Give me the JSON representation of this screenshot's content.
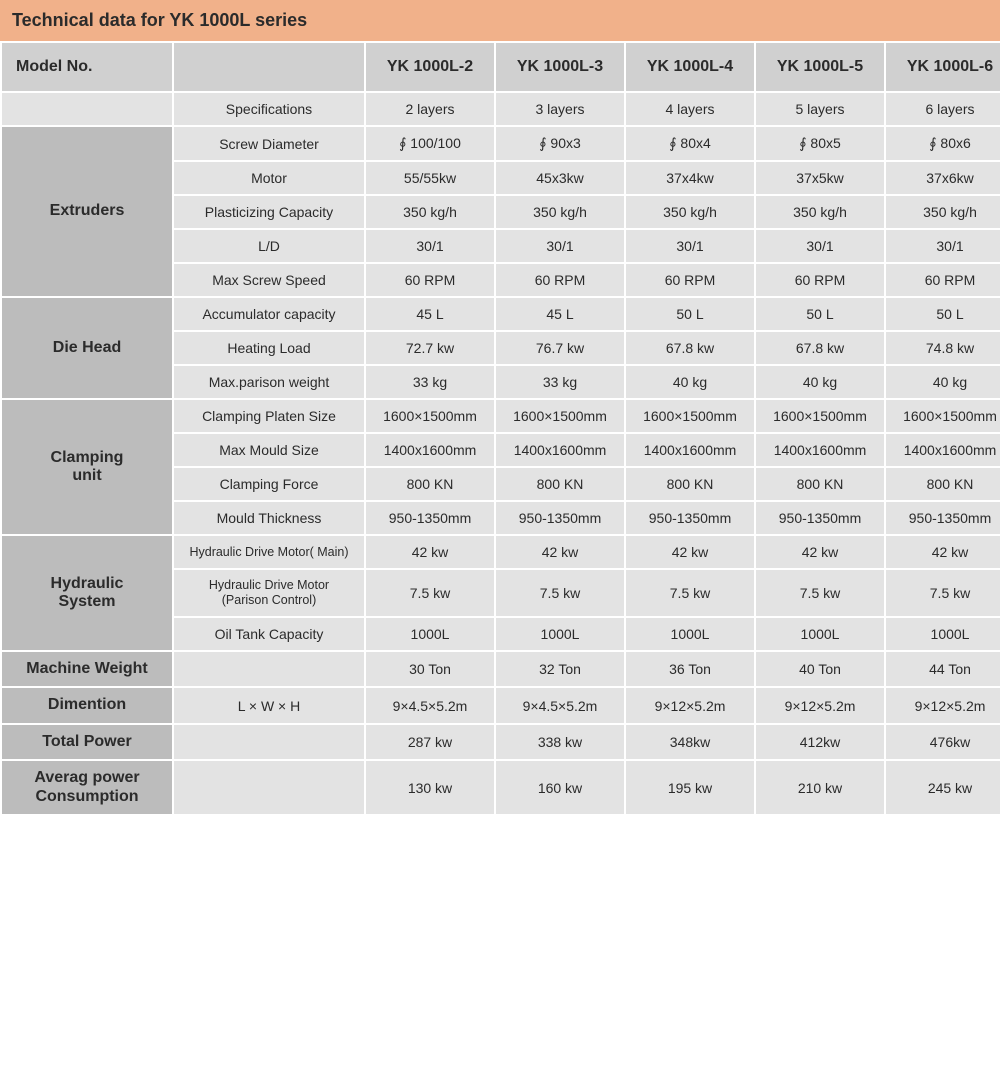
{
  "title": "Technical data for YK 1000L series",
  "colors": {
    "title_bg": "#f1b18a",
    "header_bg": "#d0d0d0",
    "category_bg": "#bcbcbc",
    "cell_bg": "#e3e3e3",
    "text": "#2b2b2b"
  },
  "header": {
    "model_no": "Model No.",
    "models": [
      "YK 1000L-2",
      "YK 1000L-3",
      "YK 1000L-4",
      "YK 1000L-5",
      "YK 1000L-6"
    ]
  },
  "specifications_row": {
    "label": "Specifications",
    "values": [
      "2 layers",
      "3 layers",
      "4 layers",
      "5 layers",
      "6 layers"
    ]
  },
  "sections": [
    {
      "name": "Extruders",
      "rows": [
        {
          "label": "Screw Diameter",
          "values": [
            "∮ 100/100",
            "∮ 90x3",
            "∮ 80x4",
            "∮ 80x5",
            "∮ 80x6"
          ]
        },
        {
          "label": "Motor",
          "values": [
            "55/55kw",
            "45x3kw",
            "37x4kw",
            "37x5kw",
            "37x6kw"
          ]
        },
        {
          "label": "Plasticizing Capacity",
          "values": [
            "350 kg/h",
            "350 kg/h",
            "350 kg/h",
            "350 kg/h",
            "350 kg/h"
          ]
        },
        {
          "label": "L/D",
          "values": [
            "30/1",
            "30/1",
            "30/1",
            "30/1",
            "30/1"
          ]
        },
        {
          "label": "Max Screw Speed",
          "values": [
            "60 RPM",
            "60 RPM",
            "60 RPM",
            "60 RPM",
            "60 RPM"
          ]
        }
      ]
    },
    {
      "name": "Die Head",
      "rows": [
        {
          "label": "Accumulator capacity",
          "values": [
            "45 L",
            "45 L",
            "50 L",
            "50 L",
            "50 L"
          ]
        },
        {
          "label": "Heating Load",
          "values": [
            "72.7 kw",
            "76.7 kw",
            "67.8 kw",
            "67.8 kw",
            "74.8 kw"
          ]
        },
        {
          "label": "Max.parison weight",
          "values": [
            "33 kg",
            "33 kg",
            "40 kg",
            "40 kg",
            "40 kg"
          ]
        }
      ]
    },
    {
      "name": "Clamping unit",
      "name_html": "Clamping<br>unit",
      "rows": [
        {
          "label": "Clamping Platen Size",
          "values": [
            "1600×1500mm",
            "1600×1500mm",
            "1600×1500mm",
            "1600×1500mm",
            "1600×1500mm"
          ]
        },
        {
          "label": "Max Mould Size",
          "values": [
            "1400x1600mm",
            "1400x1600mm",
            "1400x1600mm",
            "1400x1600mm",
            "1400x1600mm"
          ]
        },
        {
          "label": "Clamping Force",
          "values": [
            "800 KN",
            "800 KN",
            "800 KN",
            "800 KN",
            "800 KN"
          ]
        },
        {
          "label": "Mould Thickness",
          "values": [
            "950-1350mm",
            "950-1350mm",
            "950-1350mm",
            "950-1350mm",
            "950-1350mm"
          ]
        }
      ]
    },
    {
      "name": "Hydraulic System",
      "name_html": "Hydraulic<br>System",
      "rows": [
        {
          "label": "Hydraulic Drive Motor( Main)",
          "small": true,
          "values": [
            "42 kw",
            "42 kw",
            "42 kw",
            "42 kw",
            "42 kw"
          ]
        },
        {
          "label": "Hydraulic Drive Motor (Parison Control)",
          "label_html": "Hydraulic Drive Motor<br>(Parison Control)",
          "small": true,
          "values": [
            "7.5 kw",
            "7.5 kw",
            "7.5 kw",
            "7.5 kw",
            "7.5 kw"
          ]
        },
        {
          "label": "Oil Tank Capacity",
          "values": [
            "1000L",
            "1000L",
            "1000L",
            "1000L",
            "1000L"
          ]
        }
      ]
    }
  ],
  "single_rows": [
    {
      "name": "Machine Weight",
      "values": [
        "30 Ton",
        "32 Ton",
        "36 Ton",
        "40 Ton",
        "44 Ton"
      ]
    },
    {
      "name": "Dimention",
      "spec_label": "L × W × H",
      "values": [
        "9×4.5×5.2m",
        "9×4.5×5.2m",
        "9×12×5.2m",
        "9×12×5.2m",
        "9×12×5.2m"
      ]
    },
    {
      "name": "Total Power",
      "values": [
        "287 kw",
        "338 kw",
        "348kw",
        "412kw",
        "476kw"
      ]
    },
    {
      "name": "Averag power Consumption",
      "name_html": "Averag power<br>Consumption",
      "values": [
        "130 kw",
        "160 kw",
        "195 kw",
        "210 kw",
        "245 kw"
      ]
    }
  ]
}
